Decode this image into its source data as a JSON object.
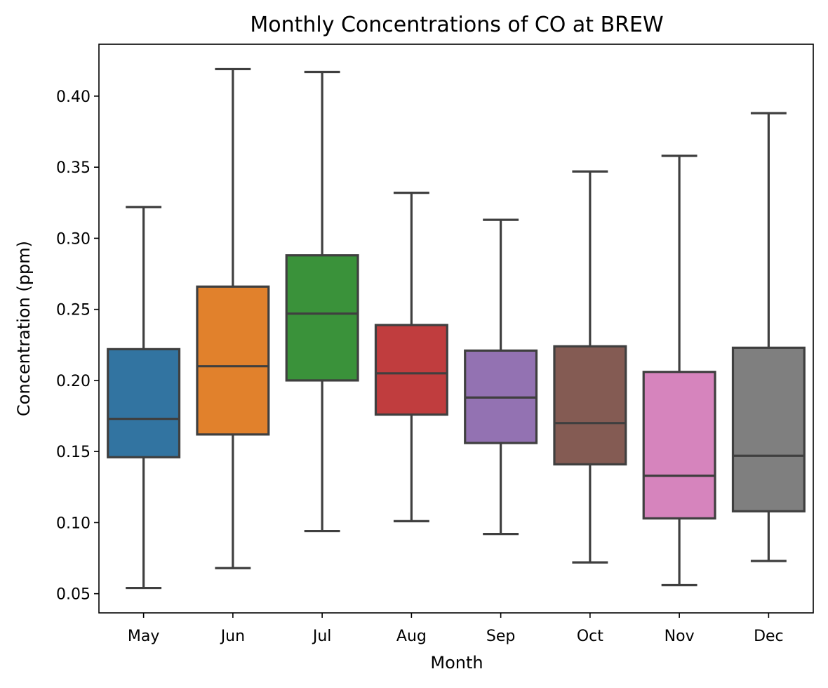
{
  "chart_data": {
    "type": "box",
    "title": "Monthly Concentrations of CO at BREW",
    "xlabel": "Month",
    "ylabel": "Concentration (ppm)",
    "categories": [
      "May",
      "Jun",
      "Jul",
      "Aug",
      "Sep",
      "Oct",
      "Nov",
      "Dec"
    ],
    "colors": [
      "#3274a1",
      "#e1812c",
      "#3a923a",
      "#c03d3e",
      "#9372b2",
      "#845b53",
      "#d684bd",
      "#7f7f7f"
    ],
    "edge_color": "#3f3f3f",
    "boxes": [
      {
        "whisker_low": 0.054,
        "q1": 0.146,
        "median": 0.173,
        "q3": 0.222,
        "whisker_high": 0.322
      },
      {
        "whisker_low": 0.068,
        "q1": 0.162,
        "median": 0.21,
        "q3": 0.266,
        "whisker_high": 0.419
      },
      {
        "whisker_low": 0.094,
        "q1": 0.2,
        "median": 0.247,
        "q3": 0.288,
        "whisker_high": 0.417
      },
      {
        "whisker_low": 0.101,
        "q1": 0.176,
        "median": 0.205,
        "q3": 0.239,
        "whisker_high": 0.332
      },
      {
        "whisker_low": 0.092,
        "q1": 0.156,
        "median": 0.188,
        "q3": 0.221,
        "whisker_high": 0.313
      },
      {
        "whisker_low": 0.072,
        "q1": 0.141,
        "median": 0.17,
        "q3": 0.224,
        "whisker_high": 0.347
      },
      {
        "whisker_low": 0.056,
        "q1": 0.103,
        "median": 0.133,
        "q3": 0.206,
        "whisker_high": 0.358
      },
      {
        "whisker_low": 0.073,
        "q1": 0.108,
        "median": 0.147,
        "q3": 0.223,
        "whisker_high": 0.388
      }
    ],
    "yticks": [
      0.05,
      0.1,
      0.15,
      0.2,
      0.25,
      0.3,
      0.35,
      0.4
    ],
    "ytick_labels": [
      "0.05",
      "0.10",
      "0.15",
      "0.20",
      "0.25",
      "0.30",
      "0.35",
      "0.40"
    ],
    "ylim": [
      0.0365,
      0.4365
    ],
    "grid": false,
    "legend": "none"
  }
}
